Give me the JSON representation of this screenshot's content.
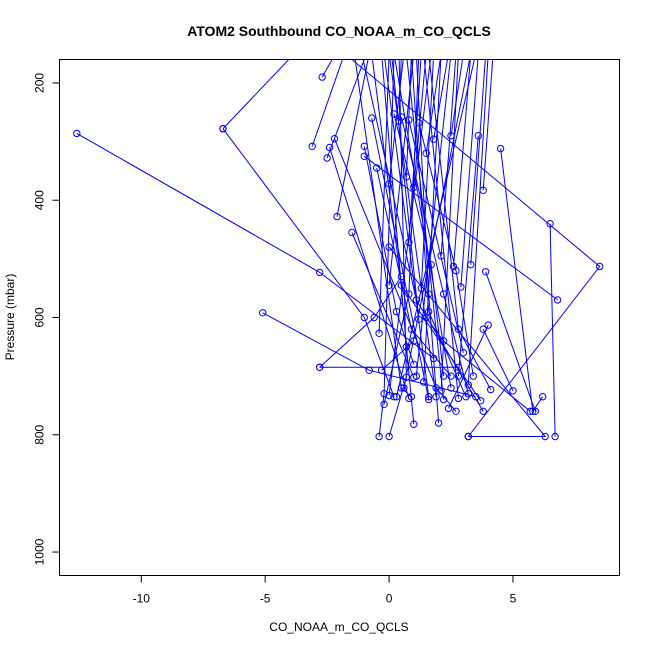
{
  "chart_data": {
    "type": "line",
    "title": "ATOM2 Southbound CO_NOAA_m_CO_QCLS",
    "xlabel": "CO_NOAA_m_CO_QCLS",
    "ylabel": "Pressure (mbar)",
    "xlim": [
      -13.3,
      9.3
    ],
    "ylim": [
      1040,
      160
    ],
    "y_reversed": true,
    "x_ticks": [
      -10,
      -5,
      0,
      5
    ],
    "x_tick_labels": [
      "-10",
      "-5",
      "0",
      "5"
    ],
    "y_ticks": [
      200,
      400,
      600,
      800,
      1000
    ],
    "y_tick_labels": [
      "200",
      "400",
      "600",
      "800",
      "1000"
    ],
    "grid": false,
    "legend": "none",
    "color": "#0000ff",
    "marker": "open-circle",
    "series": [
      {
        "points": [
          [
            -12.6,
            286
          ],
          [
            -2.8,
            523
          ],
          [
            1.8,
            670
          ]
        ]
      },
      {
        "points": [
          [
            -6.7,
            278
          ],
          [
            -4.0,
            158
          ]
        ]
      },
      {
        "points": [
          [
            -6.7,
            278
          ],
          [
            -1.0,
            600
          ],
          [
            0.2,
            735
          ]
        ]
      },
      {
        "points": [
          [
            -5.1,
            592
          ],
          [
            -0.8,
            690
          ],
          [
            3.5,
            735
          ]
        ]
      },
      {
        "points": [
          [
            -2.8,
            685
          ],
          [
            -0.6,
            600
          ],
          [
            0.5,
            530
          ]
        ]
      },
      {
        "points": [
          [
            -2.8,
            685
          ],
          [
            2.8,
            685
          ]
        ]
      },
      {
        "points": [
          [
            -3.1,
            308
          ],
          [
            -1.8,
            150
          ]
        ]
      },
      {
        "points": [
          [
            -2.7,
            190
          ],
          [
            -2.3,
            160
          ]
        ]
      },
      {
        "points": [
          [
            -2.1,
            428
          ],
          [
            -0.8,
            150
          ]
        ]
      },
      {
        "points": [
          [
            -2.2,
            295
          ],
          [
            1.9,
            720
          ],
          [
            2.7,
            760
          ]
        ]
      },
      {
        "points": [
          [
            -2.4,
            310
          ],
          [
            0.8,
            738
          ]
        ]
      },
      {
        "points": [
          [
            -2.5,
            328
          ],
          [
            -1.0,
            160
          ]
        ]
      },
      {
        "points": [
          [
            -0.4,
            627
          ],
          [
            0.0,
            150
          ]
        ]
      },
      {
        "points": [
          [
            -0.2,
            748
          ],
          [
            0.8,
            560
          ],
          [
            1.2,
            150
          ]
        ]
      },
      {
        "points": [
          [
            -0.4,
            803
          ],
          [
            -0.2,
            730
          ],
          [
            0.2,
            150
          ]
        ]
      },
      {
        "points": [
          [
            0.0,
            803
          ],
          [
            0.7,
            702
          ],
          [
            0.4,
            150
          ]
        ]
      },
      {
        "points": [
          [
            -1.0,
            308
          ],
          [
            0.3,
            590
          ],
          [
            1.0,
            680
          ]
        ]
      },
      {
        "points": [
          [
            -0.7,
            260
          ],
          [
            1.6,
            740
          ]
        ]
      },
      {
        "points": [
          [
            -1.5,
            455
          ],
          [
            1.0,
            702
          ]
        ]
      },
      {
        "points": [
          [
            -0.5,
            345
          ],
          [
            0.9,
            620
          ],
          [
            2.5,
            700
          ]
        ]
      },
      {
        "points": [
          [
            0.0,
            372
          ],
          [
            0.6,
            150
          ]
        ]
      },
      {
        "points": [
          [
            0.2,
            253
          ],
          [
            1.7,
            510
          ],
          [
            2.2,
            700
          ]
        ]
      },
      {
        "points": [
          [
            0.5,
            258
          ],
          [
            2.2,
            560
          ],
          [
            3.2,
            730
          ]
        ]
      },
      {
        "points": [
          [
            0.8,
            263
          ],
          [
            3.0,
            660
          ]
        ]
      },
      {
        "points": [
          [
            0.4,
            265
          ],
          [
            0.5,
            150
          ]
        ]
      },
      {
        "points": [
          [
            0.7,
            360
          ],
          [
            0.9,
            150
          ]
        ]
      },
      {
        "points": [
          [
            0.8,
            472
          ],
          [
            1.3,
            150
          ]
        ]
      },
      {
        "points": [
          [
            1.0,
            378
          ],
          [
            1.5,
            150
          ]
        ]
      },
      {
        "points": [
          [
            1.3,
            550
          ],
          [
            1.8,
            150
          ]
        ]
      },
      {
        "points": [
          [
            1.2,
            268
          ],
          [
            2.7,
            520
          ],
          [
            3.4,
            700
          ]
        ]
      },
      {
        "points": [
          [
            1.5,
            320
          ],
          [
            2.1,
            150
          ]
        ]
      },
      {
        "points": [
          [
            1.8,
            296
          ],
          [
            2.4,
            150
          ]
        ]
      },
      {
        "points": [
          [
            2.1,
            495
          ],
          [
            2.7,
            150
          ]
        ]
      },
      {
        "points": [
          [
            2.5,
            290
          ],
          [
            3.0,
            150
          ]
        ]
      },
      {
        "points": [
          [
            2.6,
            513
          ],
          [
            3.3,
            150
          ]
        ]
      },
      {
        "points": [
          [
            2.9,
            548
          ],
          [
            3.6,
            150
          ]
        ]
      },
      {
        "points": [
          [
            3.3,
            510
          ],
          [
            3.9,
            150
          ]
        ]
      },
      {
        "points": [
          [
            3.6,
            290
          ],
          [
            2.8,
            700
          ]
        ]
      },
      {
        "points": [
          [
            3.8,
            383
          ],
          [
            4.2,
            150
          ]
        ]
      },
      {
        "points": [
          [
            4.5,
            312
          ],
          [
            5.8,
            760
          ],
          [
            6.2,
            735
          ]
        ]
      },
      {
        "points": [
          [
            6.5,
            440
          ],
          [
            6.7,
            803
          ]
        ]
      },
      {
        "points": [
          [
            -1.0,
            325
          ],
          [
            6.8,
            570
          ]
        ]
      },
      {
        "points": [
          [
            -1.5,
            160
          ],
          [
            8.5,
            513
          ],
          [
            3.2,
            803
          ]
        ]
      },
      {
        "points": [
          [
            3.9,
            522
          ],
          [
            5.9,
            760
          ]
        ]
      },
      {
        "points": [
          [
            4.0,
            613
          ],
          [
            2.4,
            755
          ]
        ]
      },
      {
        "points": [
          [
            4.1,
            723
          ],
          [
            2.8,
            620
          ],
          [
            1.6,
            150
          ]
        ]
      },
      {
        "points": [
          [
            0.0,
            480
          ],
          [
            6.3,
            803
          ],
          [
            3.2,
            803
          ]
        ]
      },
      {
        "points": [
          [
            5.0,
            725
          ],
          [
            3.8,
            620
          ]
        ]
      },
      {
        "points": [
          [
            3.1,
            735
          ],
          [
            1.6,
            590
          ],
          [
            0.9,
            150
          ]
        ]
      },
      {
        "points": [
          [
            3.7,
            742
          ],
          [
            0.5,
            545
          ],
          [
            -0.7,
            150
          ]
        ]
      },
      {
        "points": [
          [
            3.8,
            760
          ],
          [
            1.1,
            570
          ],
          [
            -1.1,
            150
          ]
        ]
      },
      {
        "points": [
          [
            2.0,
            780
          ],
          [
            1.6,
            560
          ],
          [
            1.1,
            150
          ]
        ]
      },
      {
        "points": [
          [
            1.0,
            782
          ],
          [
            0.7,
            650
          ],
          [
            -0.3,
            150
          ]
        ]
      },
      {
        "points": [
          [
            0.9,
            735
          ],
          [
            0.5,
            720
          ],
          [
            -1.4,
            150
          ]
        ]
      },
      {
        "points": [
          [
            1.2,
            603
          ],
          [
            0.1,
            150
          ]
        ]
      },
      {
        "points": [
          [
            1.9,
            735
          ],
          [
            0.0,
            150
          ]
        ]
      },
      {
        "points": [
          [
            2.2,
            740
          ],
          [
            0.7,
            150
          ]
        ]
      },
      {
        "points": [
          [
            2.8,
            738
          ],
          [
            1.4,
            150
          ]
        ]
      },
      {
        "points": [
          [
            2.1,
            725
          ],
          [
            2.8,
            150
          ]
        ]
      },
      {
        "points": [
          [
            1.4,
            710
          ],
          [
            2.1,
            150
          ]
        ]
      },
      {
        "points": [
          [
            0.6,
            720
          ],
          [
            3.3,
            150
          ]
        ]
      },
      {
        "points": [
          [
            0.3,
            735
          ],
          [
            3.5,
            150
          ]
        ]
      },
      {
        "points": [
          [
            1.6,
            735
          ],
          [
            -0.2,
            150
          ]
        ]
      },
      {
        "points": [
          [
            3.2,
            715
          ],
          [
            4.0,
            150
          ]
        ]
      },
      {
        "points": [
          [
            0.0,
            545
          ],
          [
            1.0,
            150
          ]
        ]
      },
      {
        "points": [
          [
            0.0,
            733
          ],
          [
            1.7,
            150
          ]
        ]
      },
      {
        "points": [
          [
            1.1,
            700
          ],
          [
            2.5,
            150
          ]
        ]
      },
      {
        "points": [
          [
            2.5,
            720
          ],
          [
            0.2,
            150
          ]
        ]
      },
      {
        "points": [
          [
            5.7,
            760
          ],
          [
            2.2,
            640
          ],
          [
            1.5,
            600
          ]
        ]
      },
      {
        "points": [
          [
            -0.3,
            690
          ],
          [
            1.0,
            640
          ]
        ]
      }
    ]
  }
}
